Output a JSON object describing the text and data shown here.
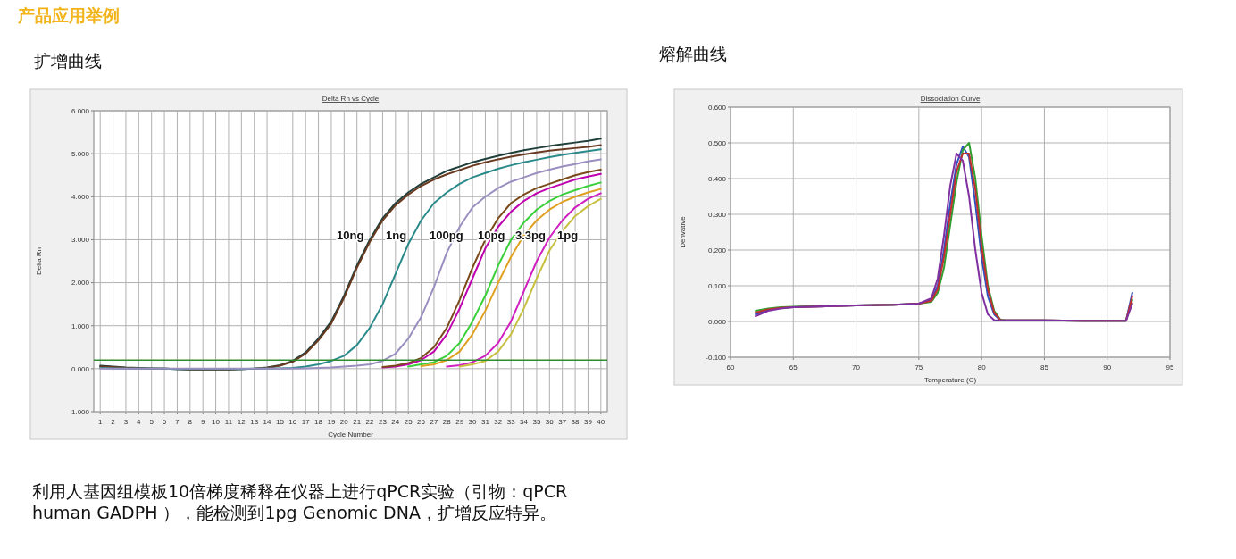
{
  "chart_data": [
    {
      "type": "line",
      "title": "Delta Rn vs Cycle",
      "subtitle": "扩增曲线",
      "xlabel": "Cycle Number",
      "ylabel": "Delta Rn",
      "x": [
        1,
        2,
        3,
        4,
        5,
        6,
        7,
        8,
        9,
        10,
        11,
        12,
        13,
        14,
        15,
        16,
        17,
        18,
        19,
        20,
        21,
        22,
        23,
        24,
        25,
        26,
        27,
        28,
        29,
        30,
        31,
        32,
        33,
        34,
        35,
        36,
        37,
        38,
        39,
        40
      ],
      "series": [
        {
          "color": "#1f3f3a",
          "values": [
            0.07,
            0.05,
            0.03,
            0.02,
            0.01,
            0,
            -0.01,
            -0.02,
            -0.02,
            -0.02,
            -0.02,
            -0.01,
            0,
            0.03,
            0.08,
            0.18,
            0.38,
            0.7,
            1.1,
            1.7,
            2.4,
            3.0,
            3.5,
            3.85,
            4.1,
            4.3,
            4.45,
            4.6,
            4.7,
            4.8,
            4.88,
            4.95,
            5.02,
            5.08,
            5.13,
            5.18,
            5.22,
            5.26,
            5.3,
            5.35
          ]
        },
        {
          "color": "#6a3a20",
          "values": [
            0.05,
            0.04,
            0.02,
            0.01,
            0,
            0,
            -0.01,
            -0.02,
            -0.02,
            -0.02,
            -0.02,
            -0.01,
            0,
            0.02,
            0.07,
            0.16,
            0.35,
            0.66,
            1.05,
            1.65,
            2.35,
            2.95,
            3.45,
            3.8,
            4.05,
            4.25,
            4.4,
            4.52,
            4.62,
            4.72,
            4.8,
            4.87,
            4.93,
            4.98,
            5.03,
            5.07,
            5.1,
            5.13,
            5.16,
            5.2
          ]
        },
        {
          "color": "#2a8a8a",
          "values": [
            0.02,
            0.01,
            0,
            0,
            0,
            0,
            -0.01,
            -0.01,
            -0.01,
            -0.01,
            -0.01,
            -0.01,
            0,
            0,
            0.01,
            0.02,
            0.05,
            0.1,
            0.18,
            0.3,
            0.55,
            0.95,
            1.5,
            2.2,
            2.9,
            3.45,
            3.85,
            4.1,
            4.3,
            4.45,
            4.55,
            4.65,
            4.73,
            4.8,
            4.86,
            4.92,
            4.97,
            5.02,
            5.06,
            5.1
          ]
        },
        {
          "color": "#9a8fc0",
          "values": [
            0,
            0,
            0,
            0,
            0,
            0,
            0,
            0,
            0,
            0,
            0,
            0,
            0,
            0,
            0,
            0,
            0.01,
            0.02,
            0.03,
            0.05,
            0.07,
            0.1,
            0.18,
            0.35,
            0.7,
            1.2,
            1.9,
            2.7,
            3.3,
            3.75,
            4.0,
            4.2,
            4.35,
            4.45,
            4.55,
            4.63,
            4.7,
            4.76,
            4.82,
            4.87
          ]
        },
        {
          "color": "#c000b0",
          "values": [
            null,
            null,
            null,
            null,
            null,
            null,
            null,
            null,
            null,
            null,
            null,
            null,
            null,
            null,
            null,
            null,
            null,
            null,
            null,
            null,
            null,
            null,
            0.03,
            0.05,
            0.1,
            0.2,
            0.4,
            0.8,
            1.4,
            2.1,
            2.8,
            3.3,
            3.65,
            3.9,
            4.08,
            4.2,
            4.3,
            4.4,
            4.47,
            4.53
          ]
        },
        {
          "color": "#7a4a1a",
          "values": [
            null,
            null,
            null,
            null,
            null,
            null,
            null,
            null,
            null,
            null,
            null,
            null,
            null,
            null,
            null,
            null,
            null,
            null,
            null,
            null,
            null,
            null,
            0.04,
            0.07,
            0.13,
            0.25,
            0.5,
            0.95,
            1.6,
            2.35,
            3.0,
            3.5,
            3.85,
            4.05,
            4.2,
            4.3,
            4.4,
            4.5,
            4.57,
            4.63
          ]
        },
        {
          "color": "#3ad03a",
          "values": [
            null,
            null,
            null,
            null,
            null,
            null,
            null,
            null,
            null,
            null,
            null,
            null,
            null,
            null,
            null,
            null,
            null,
            null,
            null,
            null,
            null,
            null,
            null,
            null,
            0.05,
            0.1,
            0.15,
            0.3,
            0.6,
            1.1,
            1.7,
            2.4,
            3.0,
            3.4,
            3.7,
            3.9,
            4.05,
            4.15,
            4.25,
            4.33
          ]
        },
        {
          "color": "#e0a020",
          "values": [
            null,
            null,
            null,
            null,
            null,
            null,
            null,
            null,
            null,
            null,
            null,
            null,
            null,
            null,
            null,
            null,
            null,
            null,
            null,
            null,
            null,
            null,
            null,
            null,
            null,
            0.06,
            0.1,
            0.2,
            0.4,
            0.8,
            1.35,
            2.0,
            2.6,
            3.1,
            3.45,
            3.7,
            3.88,
            4.0,
            4.1,
            4.18
          ]
        },
        {
          "color": "#d020c0",
          "values": [
            null,
            null,
            null,
            null,
            null,
            null,
            null,
            null,
            null,
            null,
            null,
            null,
            null,
            null,
            null,
            null,
            null,
            null,
            null,
            null,
            null,
            null,
            null,
            null,
            null,
            null,
            null,
            0.05,
            0.08,
            0.15,
            0.3,
            0.6,
            1.1,
            1.8,
            2.5,
            3.05,
            3.45,
            3.75,
            3.95,
            4.08
          ]
        },
        {
          "color": "#c8c040",
          "values": [
            null,
            null,
            null,
            null,
            null,
            null,
            null,
            null,
            null,
            null,
            null,
            null,
            null,
            null,
            null,
            null,
            null,
            null,
            null,
            null,
            null,
            null,
            null,
            null,
            null,
            null,
            null,
            null,
            0.05,
            0.1,
            0.18,
            0.4,
            0.8,
            1.4,
            2.1,
            2.75,
            3.2,
            3.55,
            3.78,
            3.95
          ]
        }
      ],
      "xlim": [
        0.5,
        40.5
      ],
      "xticks": [
        1,
        2,
        3,
        4,
        5,
        6,
        7,
        8,
        9,
        10,
        11,
        12,
        13,
        14,
        15,
        16,
        17,
        18,
        19,
        20,
        21,
        22,
        23,
        24,
        25,
        26,
        27,
        28,
        29,
        30,
        31,
        32,
        33,
        34,
        35,
        36,
        37,
        38,
        39,
        40
      ],
      "ylim": [
        -1,
        6
      ],
      "yticks": [
        {
          "value": -1,
          "label": "-1.000"
        },
        {
          "value": 0,
          "label": "0.000"
        },
        {
          "value": 1,
          "label": "1.000"
        },
        {
          "value": 2,
          "label": "2.000"
        },
        {
          "value": 3,
          "label": "3.000"
        },
        {
          "value": 4,
          "label": "4.000"
        },
        {
          "value": 5,
          "label": "5.000"
        },
        {
          "value": 6,
          "label": "6.000"
        }
      ],
      "grid": true,
      "ref_lines": [
        {
          "axis": "y",
          "value": 0.2,
          "color": "#2e8b2e"
        }
      ],
      "annotations": [
        "产品应用举例",
        "10ng",
        "1ng",
        "100pg",
        "10pg",
        "3.3pg",
        "1pg",
        "利用人基因组模板10倍梯度稀释在仪器上进行qPCR实验（引物：qPCR human GADPH ），能检测到1pg Genomic DNA，扩增反应特异。"
      ]
    },
    {
      "type": "line",
      "title": "Dissociation Curve",
      "subtitle": "熔解曲线",
      "xlabel": "Temperature (C)",
      "ylabel": "Derivative",
      "x": [
        62,
        63,
        64,
        65,
        67,
        70,
        73,
        75,
        76,
        76.5,
        77,
        77.5,
        78,
        78.5,
        79,
        79.5,
        80,
        80.5,
        81,
        81.5,
        82,
        85,
        88,
        91.5,
        92
      ],
      "series": [
        {
          "color": "#3050c0",
          "values": [
            0.02,
            0.033,
            0.038,
            0.04,
            0.042,
            0.045,
            0.047,
            0.05,
            0.06,
            0.1,
            0.2,
            0.33,
            0.44,
            0.49,
            0.46,
            0.33,
            0.18,
            0.07,
            0.02,
            0.003,
            0.003,
            0.003,
            0.002,
            0.002,
            0.08
          ]
        },
        {
          "color": "#30a030",
          "values": [
            0.03,
            0.036,
            0.04,
            0.041,
            0.043,
            0.045,
            0.047,
            0.05,
            0.055,
            0.08,
            0.15,
            0.27,
            0.39,
            0.48,
            0.5,
            0.4,
            0.24,
            0.1,
            0.03,
            0.005,
            0.003,
            0.003,
            0.002,
            0.002,
            0.06
          ]
        },
        {
          "color": "#c03030",
          "values": [
            0.025,
            0.034,
            0.038,
            0.04,
            0.042,
            0.045,
            0.047,
            0.05,
            0.058,
            0.09,
            0.18,
            0.3,
            0.42,
            0.47,
            0.47,
            0.37,
            0.21,
            0.09,
            0.025,
            0.004,
            0.003,
            0.003,
            0.002,
            0.002,
            0.07
          ]
        },
        {
          "color": "#8030a0",
          "values": [
            0.015,
            0.03,
            0.036,
            0.04,
            0.042,
            0.045,
            0.047,
            0.05,
            0.065,
            0.12,
            0.24,
            0.38,
            0.47,
            0.45,
            0.35,
            0.2,
            0.08,
            0.02,
            0.004,
            0.003,
            0.003,
            0.003,
            0.002,
            0.002,
            0.05
          ]
        }
      ],
      "xlim": [
        60,
        95
      ],
      "xticks": [
        60,
        65,
        70,
        75,
        80,
        85,
        90,
        95
      ],
      "ylim": [
        -0.1,
        0.6
      ],
      "yticks": [
        {
          "value": -0.1,
          "label": "-0.100"
        },
        {
          "value": 0,
          "label": "0.000"
        },
        {
          "value": 0.1,
          "label": "0.100"
        },
        {
          "value": 0.2,
          "label": "0.200"
        },
        {
          "value": 0.3,
          "label": "0.300"
        },
        {
          "value": 0.4,
          "label": "0.400"
        },
        {
          "value": 0.5,
          "label": "0.500"
        },
        {
          "value": 0.6,
          "label": "0.600"
        }
      ],
      "grid": true
    }
  ]
}
